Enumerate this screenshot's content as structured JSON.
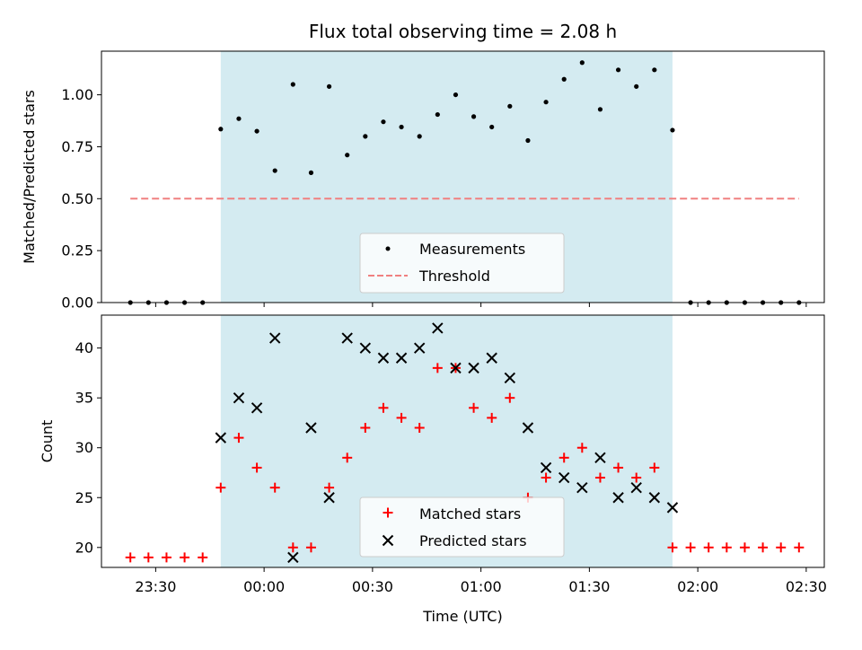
{
  "chart_data": [
    {
      "type": "scatter",
      "title": "Flux total observing time = 2.08 h",
      "xlabel": "",
      "ylabel": "Matched/Predicted stars",
      "ylim": [
        0,
        1.21
      ],
      "yticks": [
        "0.00",
        "0.25",
        "0.50",
        "0.75",
        "1.00"
      ],
      "ytick_values": [
        0,
        0.25,
        0.5,
        0.75,
        1.0
      ],
      "x_range_minutes": [
        -45,
        155
      ],
      "observing_window_minutes": [
        -12,
        113
      ],
      "observing_window_color": "#d4ebf1",
      "grid": false,
      "legend_position": "lower-center",
      "legend": [
        "Measurements",
        "Threshold"
      ],
      "series": [
        {
          "name": "Measurements",
          "marker": "dot",
          "color": "#000000",
          "x": [
            -37,
            -32,
            -27,
            -22,
            -17,
            -12,
            -7,
            -2,
            3,
            8,
            13,
            18,
            23,
            28,
            33,
            38,
            43,
            48,
            53,
            58,
            63,
            68,
            73,
            78,
            83,
            88,
            93,
            98,
            103,
            108,
            113,
            118,
            123,
            128,
            133,
            138,
            143,
            148
          ],
          "values": [
            0,
            0,
            0,
            0,
            0,
            0.835,
            0.885,
            0.825,
            0.635,
            1.05,
            0.625,
            1.04,
            0.71,
            0.8,
            0.87,
            0.845,
            0.8,
            0.905,
            1.0,
            0.895,
            0.845,
            0.945,
            0.78,
            0.965,
            1.075,
            1.155,
            0.93,
            1.12,
            1.04,
            1.12,
            0.83,
            0,
            0,
            0,
            0,
            0,
            0,
            0
          ]
        },
        {
          "name": "Threshold",
          "line": "dashed",
          "color": "#f08080",
          "x": [
            -37,
            148
          ],
          "values": [
            0.5,
            0.5
          ]
        }
      ]
    },
    {
      "type": "scatter",
      "title": "",
      "xlabel": "Time (UTC)",
      "ylabel": "Count",
      "ylim": [
        18,
        43.3
      ],
      "yticks": [
        "20",
        "25",
        "30",
        "35",
        "40"
      ],
      "ytick_values": [
        20,
        25,
        30,
        35,
        40
      ],
      "xticks": [
        "23:30",
        "00:00",
        "00:30",
        "01:00",
        "01:30",
        "02:00",
        "02:30"
      ],
      "xtick_values": [
        -30,
        0,
        30,
        60,
        90,
        120,
        150
      ],
      "x_range_minutes": [
        -45,
        155
      ],
      "observing_window_minutes": [
        -12,
        113
      ],
      "grid": false,
      "legend_position": "lower-center",
      "legend": [
        "Matched stars",
        "Predicted stars"
      ],
      "series": [
        {
          "name": "Matched stars",
          "marker": "plus",
          "color": "#ff0000",
          "x": [
            -37,
            -32,
            -27,
            -22,
            -17,
            -12,
            -7,
            -2,
            3,
            8,
            13,
            18,
            23,
            28,
            33,
            38,
            43,
            48,
            53,
            58,
            63,
            68,
            73,
            78,
            83,
            88,
            93,
            98,
            103,
            108,
            113,
            118,
            123,
            128,
            133,
            138,
            143,
            148
          ],
          "values": [
            19,
            19,
            19,
            19,
            19,
            26,
            31,
            28,
            26,
            20,
            20,
            26,
            29,
            32,
            34,
            33,
            32,
            38,
            38,
            34,
            33,
            35,
            25,
            27,
            29,
            30,
            27,
            28,
            27,
            28,
            20,
            20,
            20,
            20,
            20,
            20,
            20,
            20
          ]
        },
        {
          "name": "Predicted stars",
          "marker": "x",
          "color": "#000000",
          "x": [
            -12,
            -7,
            -2,
            3,
            8,
            13,
            18,
            23,
            28,
            33,
            38,
            43,
            48,
            53,
            58,
            63,
            68,
            73,
            78,
            83,
            88,
            93,
            98,
            103,
            108,
            113
          ],
          "values": [
            31,
            35,
            34,
            41,
            19,
            32,
            25,
            41,
            40,
            39,
            39,
            40,
            42,
            38,
            38,
            39,
            37,
            32,
            28,
            27,
            26,
            29,
            25,
            26,
            25,
            24
          ]
        }
      ]
    }
  ]
}
